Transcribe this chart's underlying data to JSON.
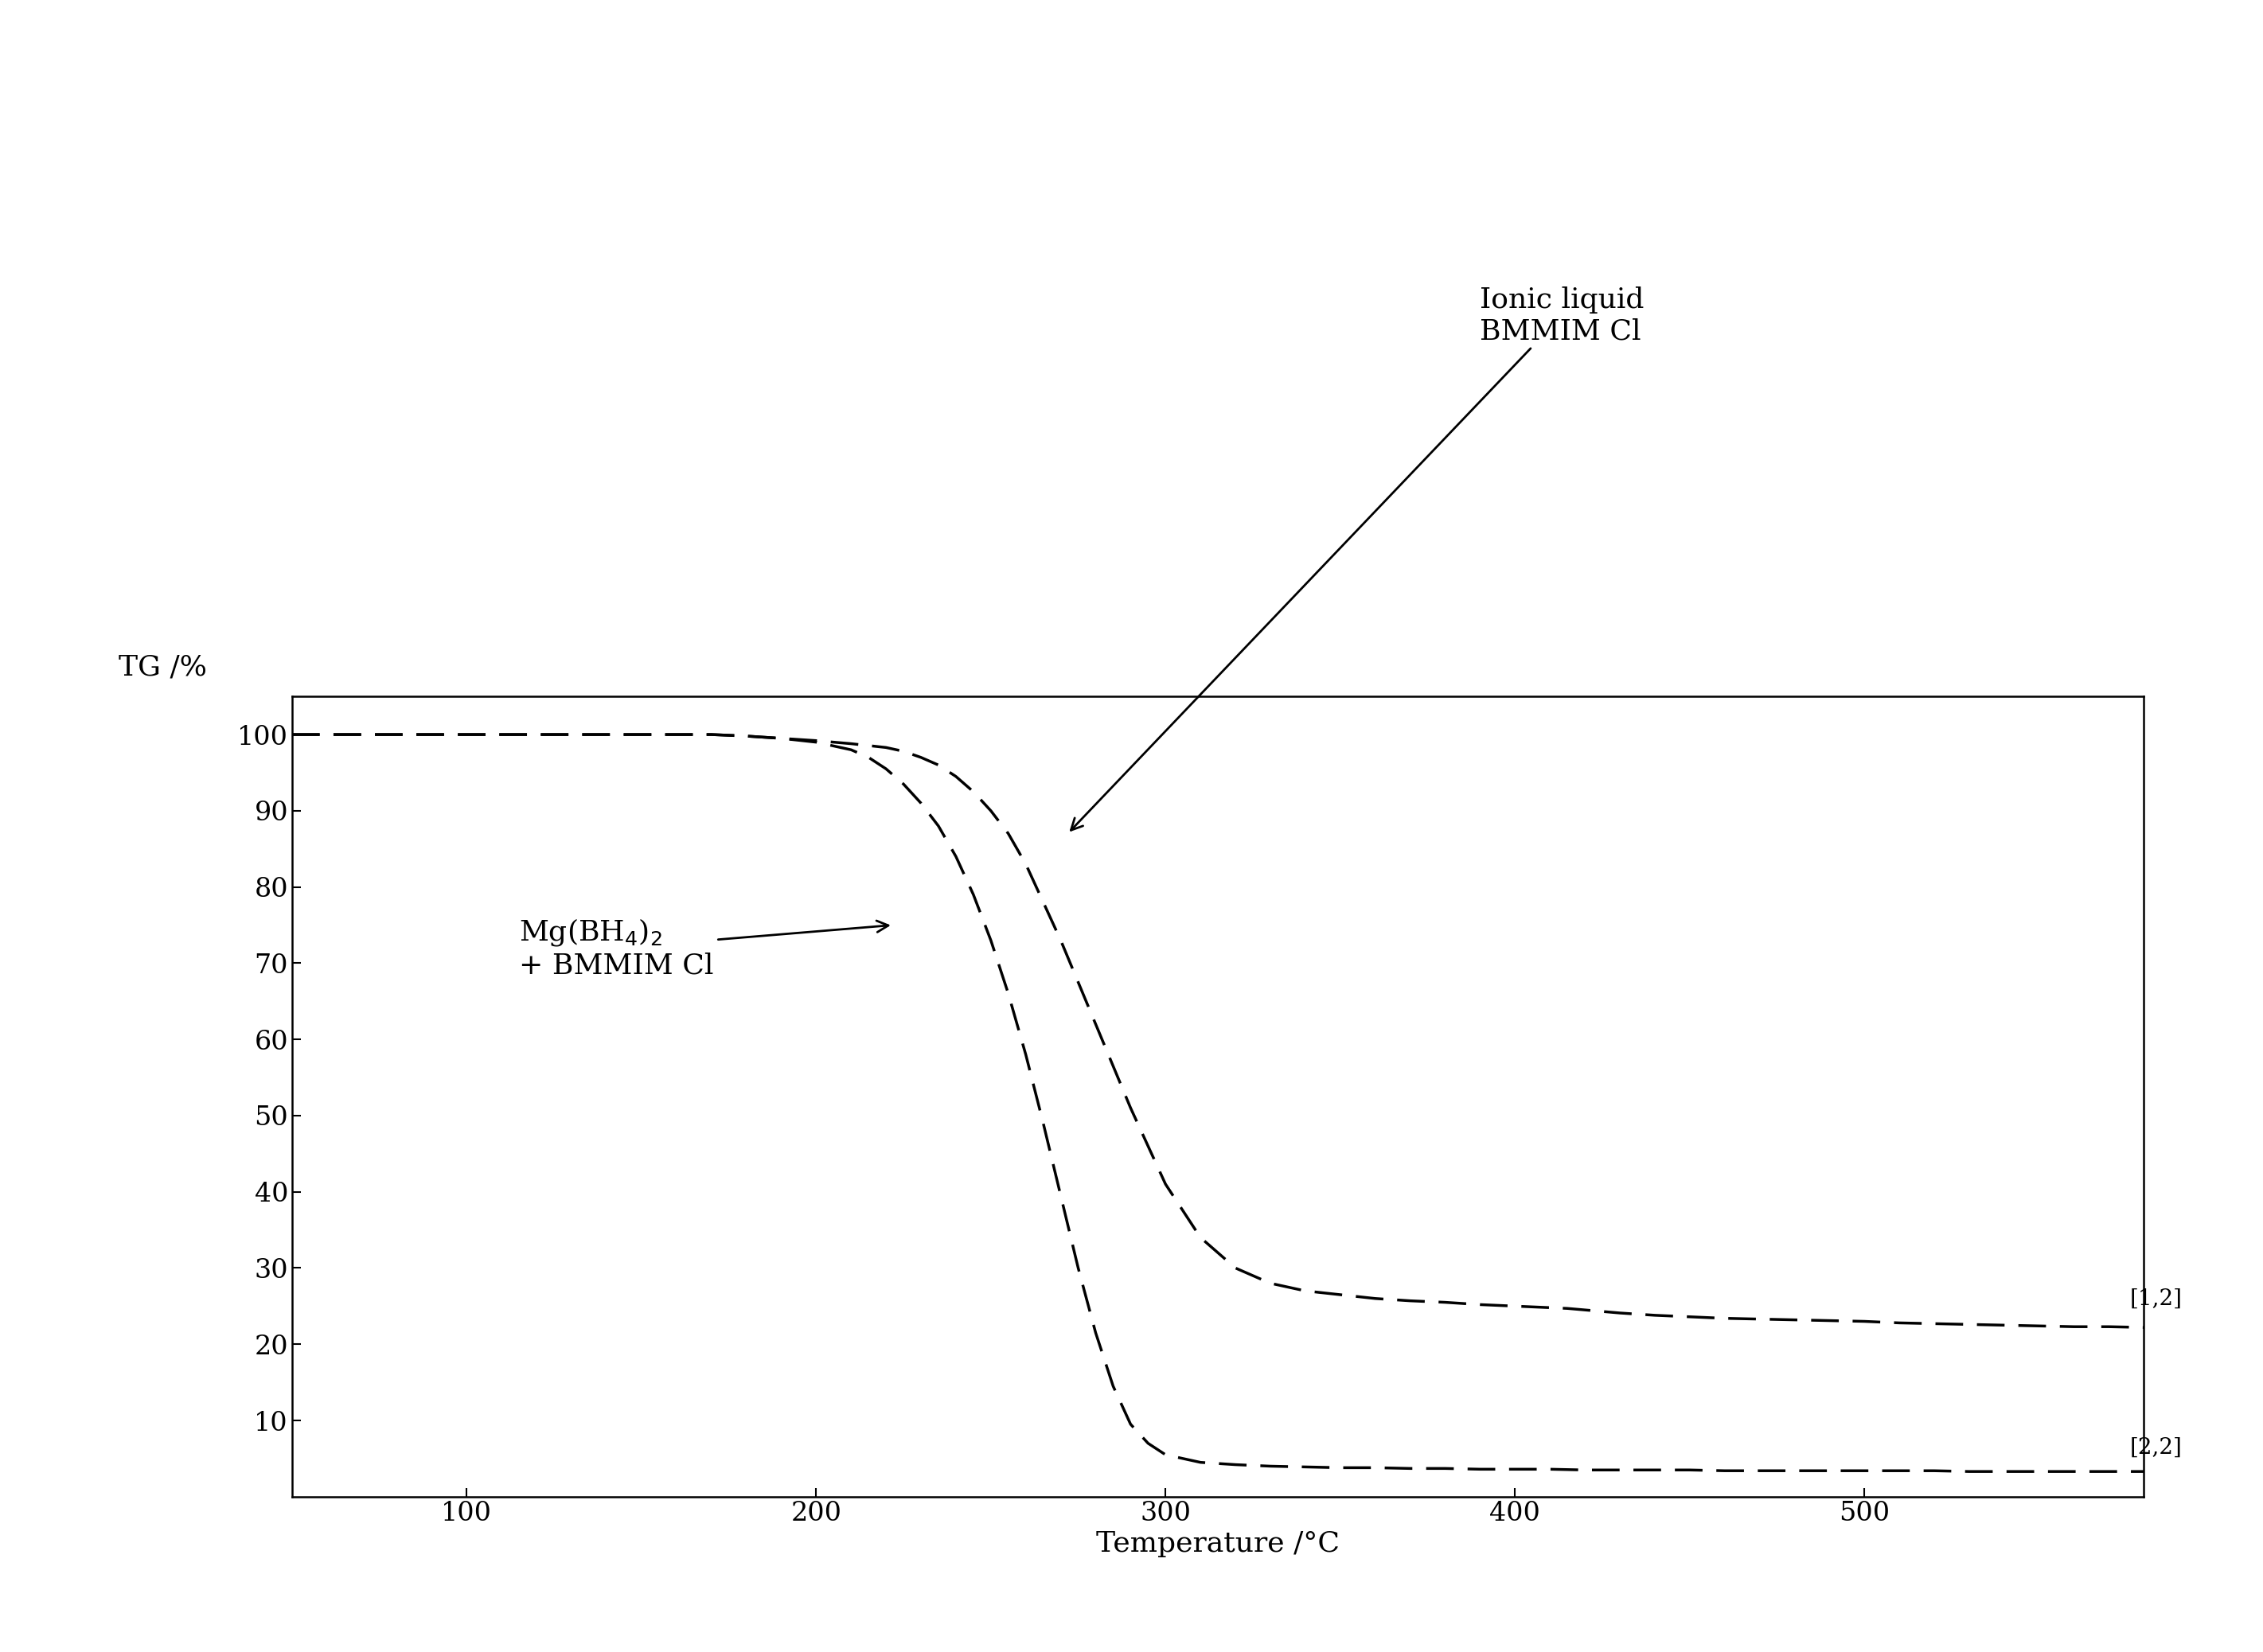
{
  "xlabel": "Temperature /°C",
  "ylabel": "TG /%",
  "xlim": [
    50,
    580
  ],
  "ylim": [
    0,
    105
  ],
  "yticks": [
    10,
    20,
    30,
    40,
    50,
    60,
    70,
    80,
    90,
    100
  ],
  "xticks": [
    100,
    200,
    300,
    400,
    500
  ],
  "curve1_label_line1": "Ionic liquid",
  "curve1_label_line2": "BMMIM Cl",
  "curve2_label_line1": "Mg(BH",
  "curve2_label_line2": "+ BMMIM Cl",
  "ref1": "[1,2]",
  "ref2": "[2,2]",
  "curve1_x": [
    50,
    60,
    70,
    80,
    90,
    100,
    110,
    120,
    130,
    140,
    150,
    160,
    170,
    180,
    190,
    200,
    210,
    220,
    225,
    230,
    235,
    240,
    245,
    250,
    255,
    260,
    270,
    280,
    290,
    300,
    310,
    320,
    330,
    340,
    350,
    360,
    370,
    380,
    390,
    400,
    410,
    415,
    420,
    425,
    430,
    440,
    450,
    460,
    470,
    480,
    490,
    500,
    510,
    520,
    530,
    540,
    550,
    560,
    570,
    580
  ],
  "curve1_y": [
    100,
    100,
    100,
    100,
    100,
    100,
    100,
    100,
    100,
    100,
    100,
    100,
    100,
    99.8,
    99.5,
    99.2,
    98.8,
    98.3,
    97.8,
    97.0,
    96.0,
    94.5,
    92.5,
    90.0,
    87.0,
    83.0,
    73.0,
    62.0,
    51.0,
    41.0,
    34.0,
    30.0,
    28.0,
    27.0,
    26.5,
    26.0,
    25.7,
    25.5,
    25.2,
    25.0,
    24.8,
    24.7,
    24.5,
    24.3,
    24.1,
    23.8,
    23.6,
    23.4,
    23.3,
    23.2,
    23.1,
    23.0,
    22.8,
    22.7,
    22.6,
    22.5,
    22.4,
    22.3,
    22.3,
    22.2
  ],
  "curve2_x": [
    50,
    60,
    70,
    80,
    90,
    100,
    110,
    120,
    130,
    140,
    150,
    160,
    170,
    180,
    190,
    200,
    210,
    215,
    220,
    225,
    230,
    235,
    240,
    245,
    250,
    255,
    260,
    265,
    270,
    275,
    280,
    285,
    290,
    295,
    300,
    310,
    320,
    330,
    340,
    350,
    360,
    370,
    380,
    390,
    400,
    410,
    420,
    430,
    440,
    450,
    460,
    470,
    480,
    490,
    500,
    510,
    520,
    530,
    540,
    550,
    560,
    570,
    580
  ],
  "curve2_y": [
    100,
    100,
    100,
    100,
    100,
    100,
    100,
    100,
    100,
    100,
    100,
    100,
    100,
    99.8,
    99.5,
    99.0,
    98.0,
    97.0,
    95.5,
    93.5,
    91.0,
    88.0,
    84.0,
    79.0,
    73.0,
    66.0,
    58.0,
    49.0,
    39.5,
    30.0,
    21.5,
    14.5,
    9.5,
    7.0,
    5.5,
    4.5,
    4.2,
    4.0,
    3.9,
    3.8,
    3.8,
    3.7,
    3.7,
    3.6,
    3.6,
    3.6,
    3.5,
    3.5,
    3.5,
    3.5,
    3.4,
    3.4,
    3.4,
    3.4,
    3.4,
    3.4,
    3.4,
    3.3,
    3.3,
    3.3,
    3.3,
    3.3,
    3.3
  ],
  "line_color": "#000000",
  "bg_color": "#ffffff",
  "dash_pattern": [
    10,
    5
  ],
  "linewidth": 2.5,
  "fontsize_label": 26,
  "fontsize_tick": 24,
  "fontsize_annot": 26,
  "fontsize_ref": 20
}
